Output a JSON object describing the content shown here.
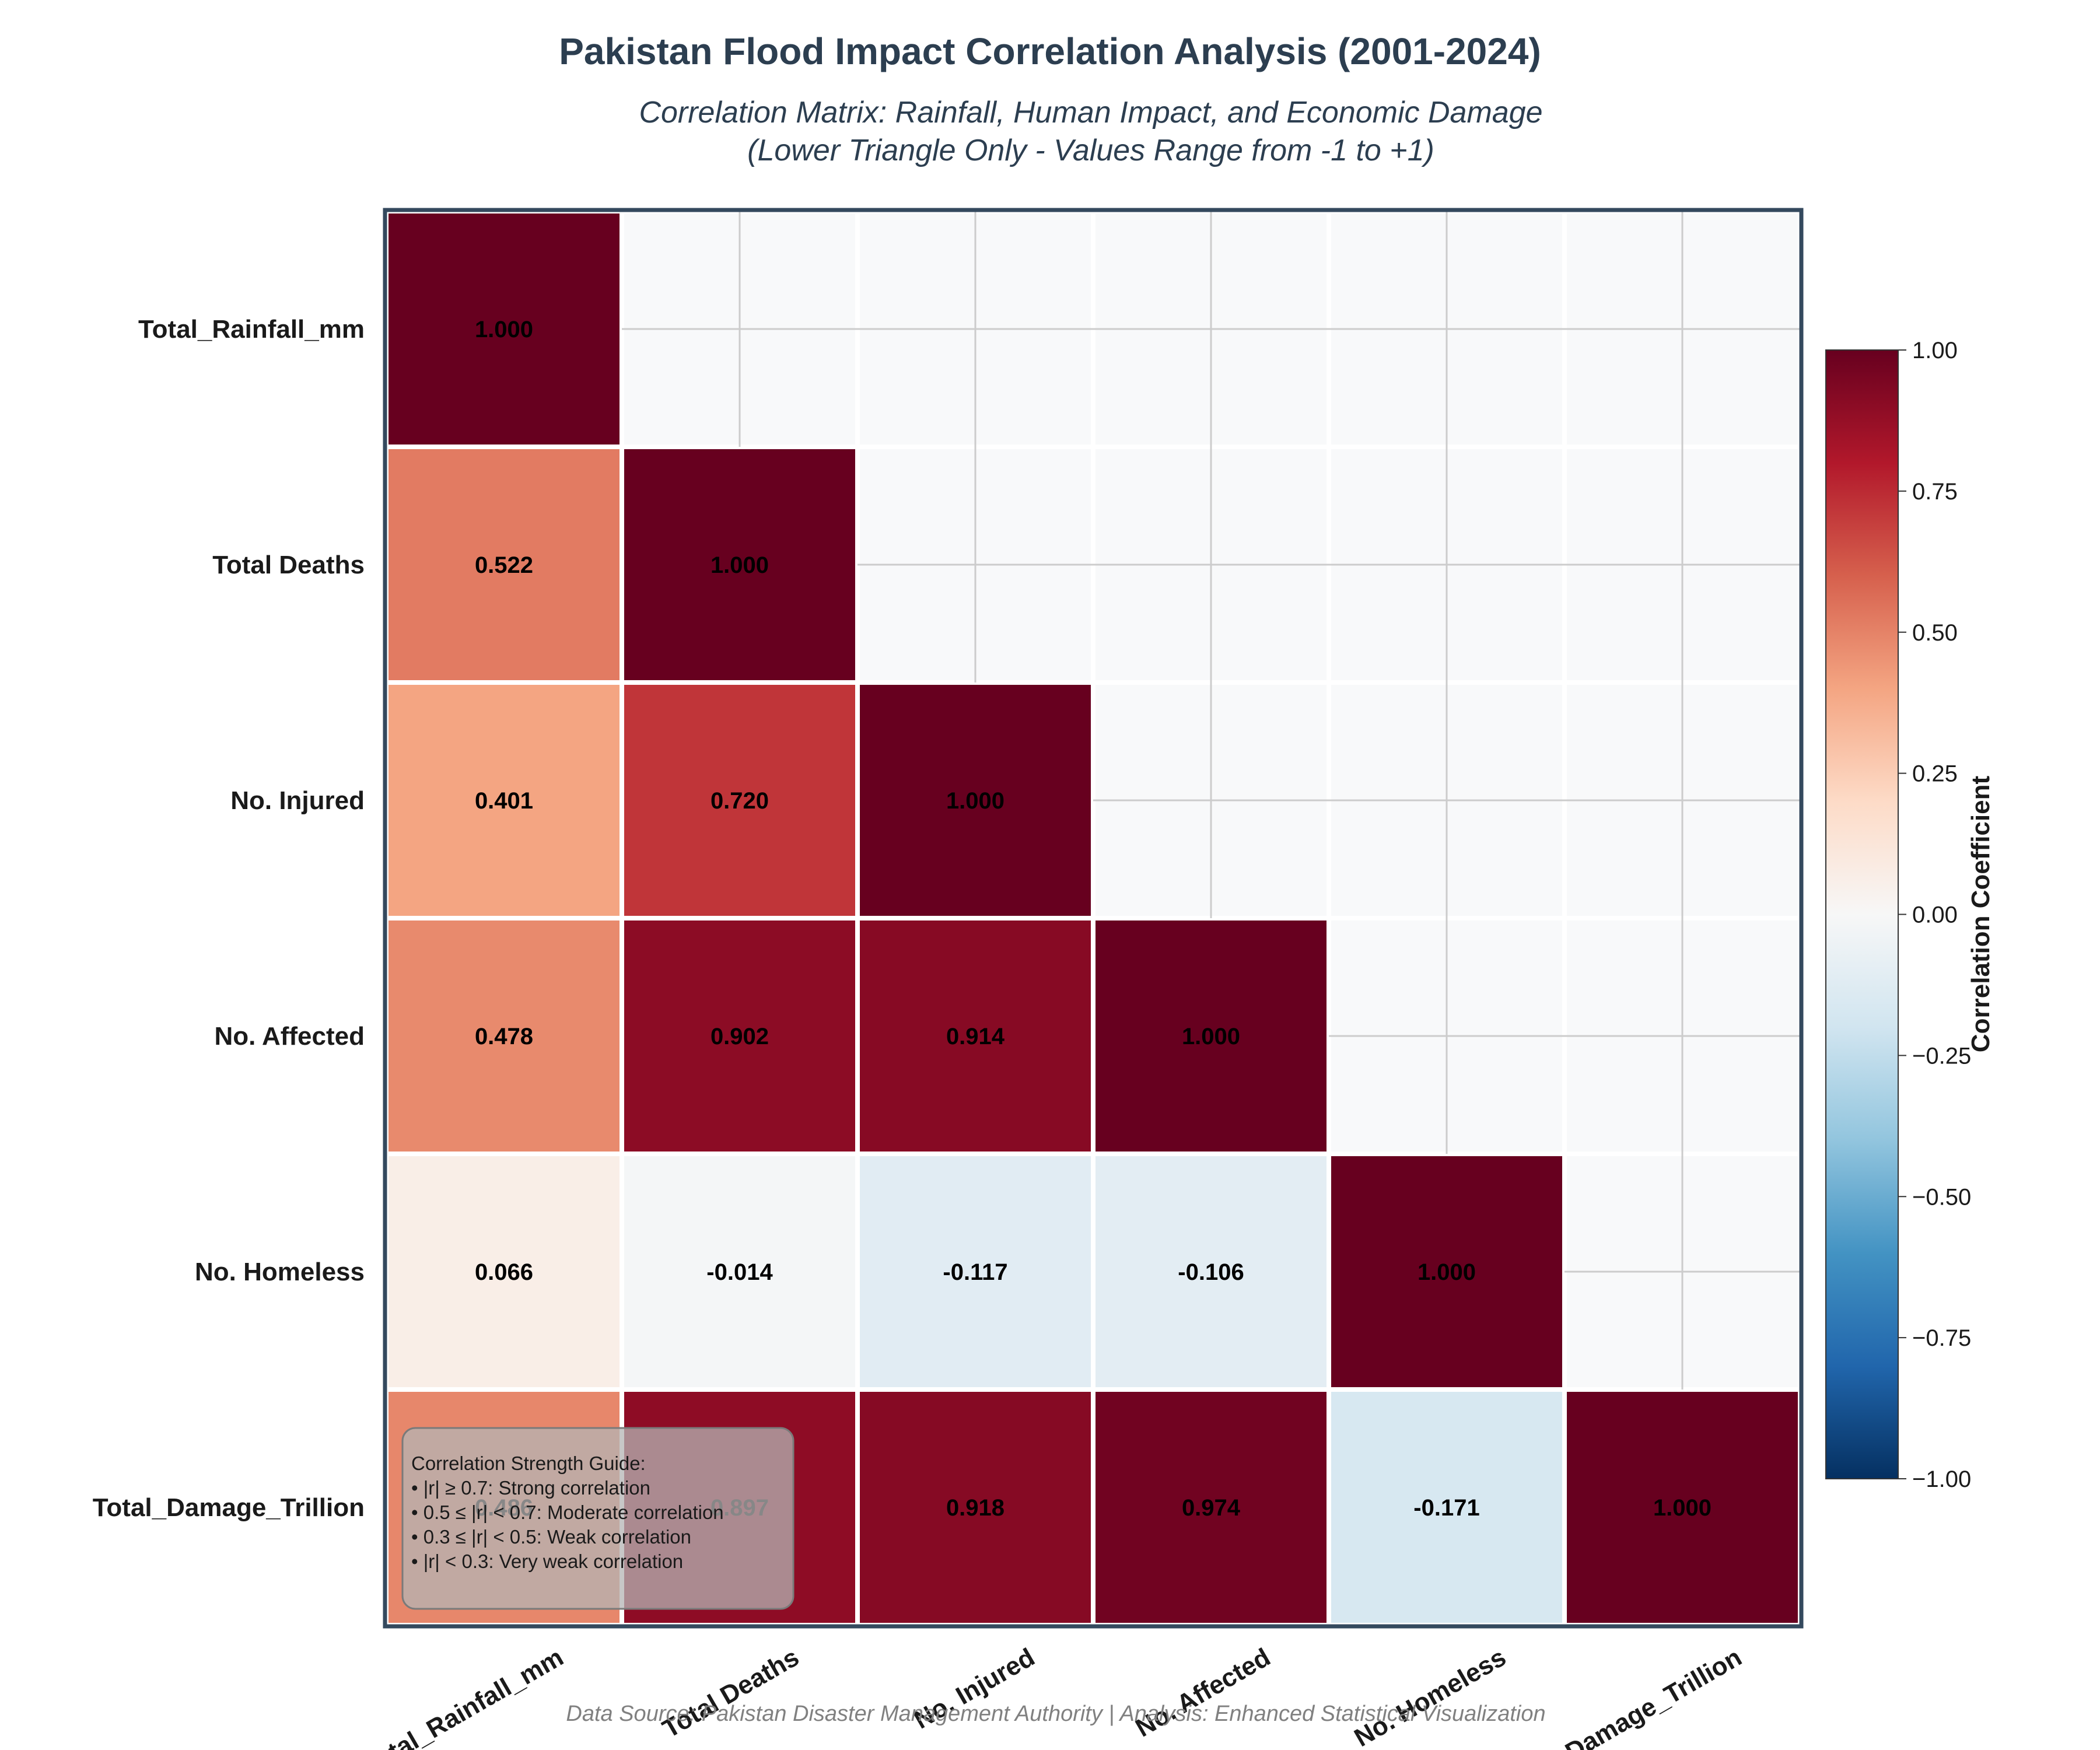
{
  "chart_data": {
    "type": "heatmap",
    "title": "Pakistan Flood Impact Correlation Analysis (2001-2024)",
    "subtitle": [
      "Correlation Matrix: Rainfall, Human Impact, and Economic Damage",
      "(Lower Triangle Only - Values Range from -1 to +1)"
    ],
    "variables": [
      "Total_Rainfall_mm",
      "Total Deaths",
      "No. Injured",
      "No. Affected",
      "No. Homeless",
      "Total_Damage_Trillion"
    ],
    "matrix": [
      [
        1.0
      ],
      [
        0.522,
        1.0
      ],
      [
        0.401,
        0.72,
        1.0
      ],
      [
        0.478,
        0.902,
        0.914,
        1.0
      ],
      [
        0.066,
        -0.014,
        -0.117,
        -0.106,
        1.0
      ],
      [
        0.486,
        0.897,
        0.918,
        0.974,
        -0.171,
        1.0
      ]
    ],
    "labels": [
      [
        "1.000"
      ],
      [
        "0.522",
        "1.000"
      ],
      [
        "0.401",
        "0.720",
        "1.000"
      ],
      [
        "0.478",
        "0.902",
        "0.914",
        "1.000"
      ],
      [
        "0.066",
        "-0.014",
        "-0.117",
        "-0.106",
        "1.000"
      ],
      [
        "0.486",
        "0.897",
        "0.918",
        "0.974",
        "-0.171",
        "1.000"
      ]
    ],
    "colorbar": {
      "label": "Correlation Coefficient",
      "range": [
        -1,
        1
      ],
      "ticks": [
        "1.00",
        "0.75",
        "0.50",
        "0.25",
        "0.00",
        "−0.25",
        "−0.50",
        "−0.75",
        "−1.00"
      ],
      "tick_values": [
        1,
        0.75,
        0.5,
        0.25,
        0,
        -0.25,
        -0.5,
        -0.75,
        -1
      ]
    },
    "colormap": "RdBu_r",
    "empty_cell_color": "#f8f9fa",
    "guide": {
      "title": "Correlation Strength Guide:",
      "items": [
        "• |r| ≥ 0.7: Strong correlation",
        "• 0.5 ≤ |r| < 0.7: Moderate correlation",
        "• 0.3 ≤ |r| < 0.5: Weak correlation",
        "• |r| < 0.3: Very weak correlation"
      ]
    },
    "footer": "Data Source: Pakistan Disaster Management Authority | Analysis: Enhanced Statistical Visualization"
  }
}
